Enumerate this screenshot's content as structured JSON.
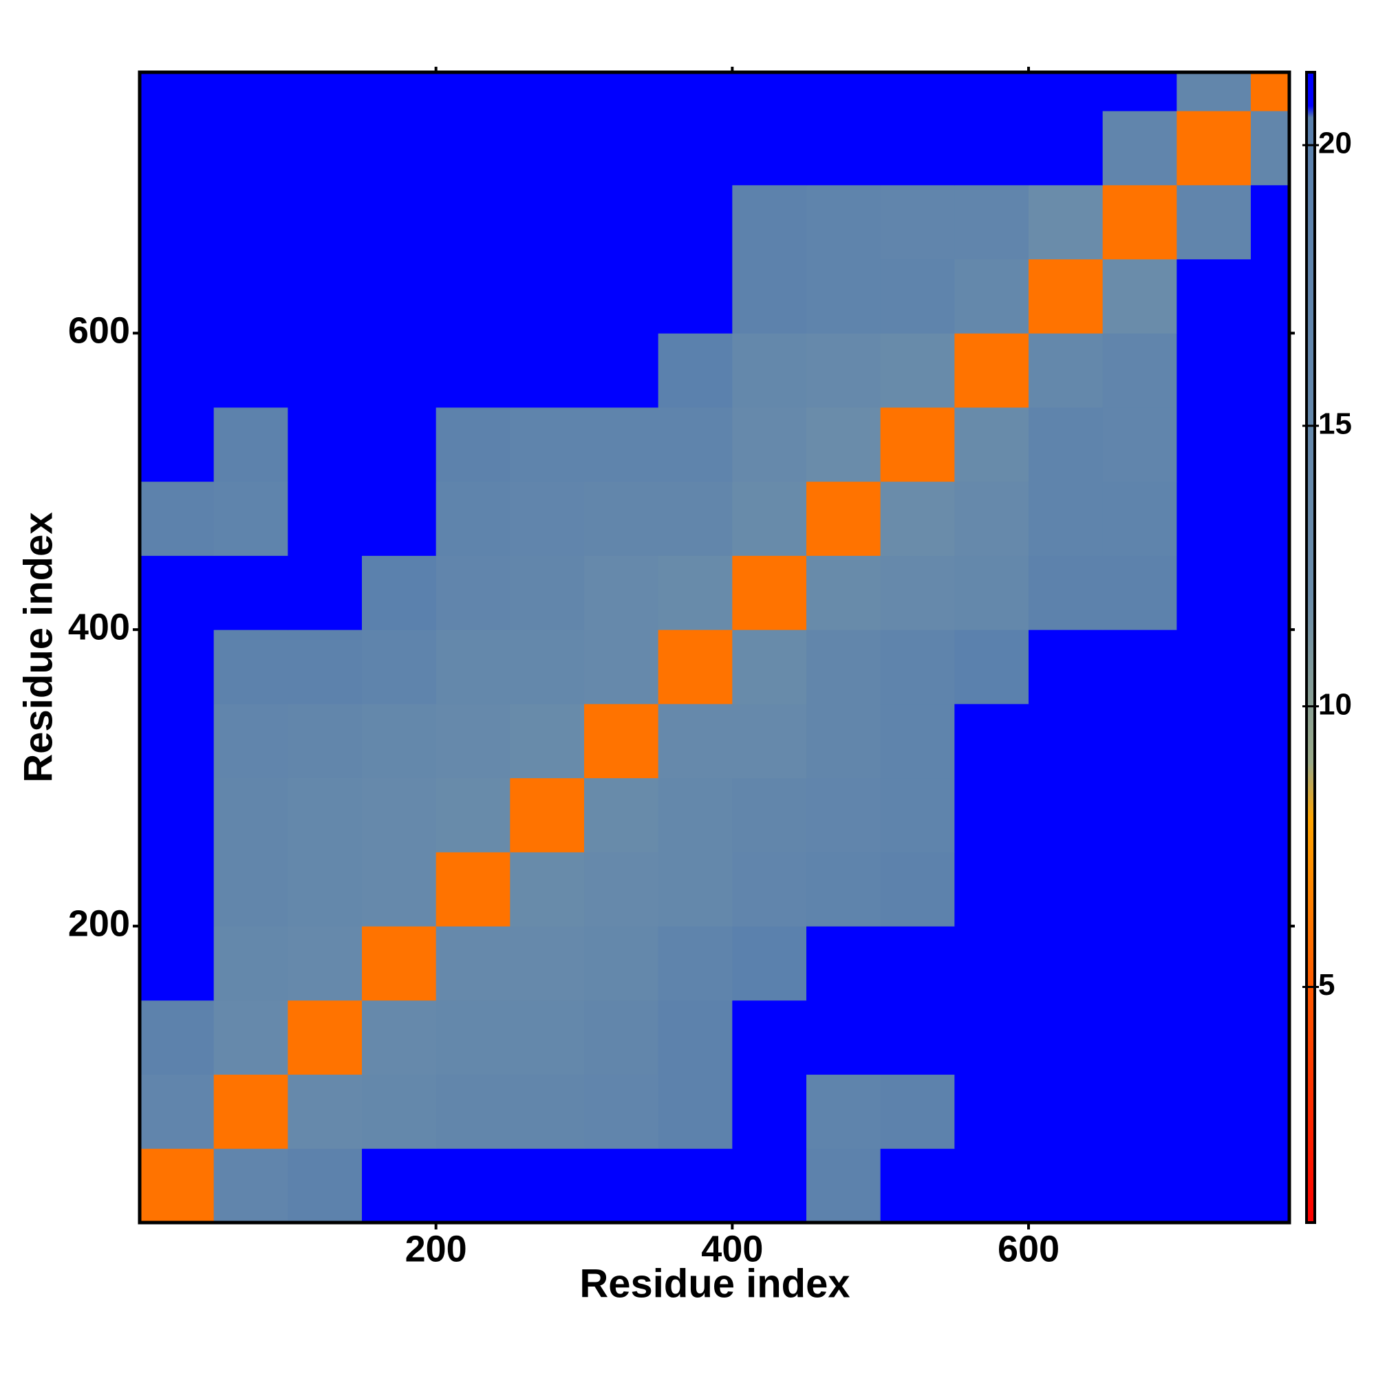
{
  "chart_data": {
    "type": "heatmap",
    "xlabel": "Residue index",
    "ylabel": "Residue index",
    "xlim": [
      0,
      776
    ],
    "ylim": [
      0,
      776
    ],
    "xticks": [
      200,
      400,
      600
    ],
    "yticks": [
      200,
      400,
      600
    ],
    "xbins": [
      0,
      50,
      100,
      150,
      200,
      250,
      300,
      350,
      400,
      450,
      500,
      550,
      600,
      650,
      700,
      750,
      776
    ],
    "ybins": [
      0,
      50,
      100,
      150,
      200,
      250,
      300,
      350,
      400,
      450,
      500,
      550,
      600,
      650,
      700,
      750,
      776
    ],
    "z": [
      [
        6,
        17,
        19,
        21,
        21,
        21,
        21,
        21,
        21,
        19,
        21,
        21,
        21,
        21,
        21,
        21
      ],
      [
        17,
        6,
        14,
        15,
        16,
        16,
        17,
        19,
        21,
        18,
        19,
        21,
        21,
        21,
        21,
        21
      ],
      [
        19,
        14,
        6,
        14,
        15,
        15,
        16,
        19,
        21,
        21,
        21,
        21,
        21,
        21,
        21,
        21
      ],
      [
        21,
        15,
        14,
        6,
        14,
        14,
        15,
        18,
        20,
        21,
        21,
        21,
        21,
        21,
        21,
        21
      ],
      [
        21,
        16,
        15,
        14,
        6,
        13,
        14,
        15,
        17,
        18,
        19,
        21,
        21,
        21,
        21,
        21
      ],
      [
        21,
        16,
        15,
        14,
        13,
        6,
        13,
        15,
        16,
        17,
        18,
        21,
        21,
        21,
        21,
        21
      ],
      [
        21,
        17,
        16,
        15,
        14,
        13,
        6,
        14,
        14,
        16,
        18,
        21,
        21,
        21,
        21,
        21
      ],
      [
        21,
        19,
        19,
        18,
        15,
        15,
        14,
        6,
        13,
        16,
        18,
        20,
        21,
        21,
        21,
        21
      ],
      [
        21,
        21,
        21,
        20,
        17,
        16,
        14,
        13,
        6,
        13,
        14,
        15,
        19,
        19,
        21,
        21
      ],
      [
        19,
        18,
        21,
        21,
        18,
        17,
        16,
        16,
        13,
        6,
        12,
        14,
        18,
        18,
        21,
        21
      ],
      [
        21,
        19,
        21,
        21,
        19,
        18,
        18,
        18,
        14,
        12,
        6,
        13,
        18,
        17,
        21,
        21
      ],
      [
        21,
        21,
        21,
        21,
        21,
        21,
        21,
        20,
        15,
        14,
        13,
        6,
        15,
        17,
        21,
        21
      ],
      [
        21,
        21,
        21,
        21,
        21,
        21,
        21,
        21,
        19,
        18,
        18,
        15,
        6,
        12,
        21,
        21
      ],
      [
        21,
        21,
        21,
        21,
        21,
        21,
        21,
        21,
        19,
        18,
        17,
        17,
        12,
        6,
        17,
        21
      ],
      [
        21,
        21,
        21,
        21,
        21,
        21,
        21,
        21,
        21,
        21,
        21,
        21,
        21,
        17,
        6,
        16
      ],
      [
        21,
        21,
        21,
        21,
        21,
        21,
        21,
        21,
        21,
        21,
        21,
        21,
        21,
        21,
        16,
        6
      ]
    ],
    "clim": [
      0.8,
      21.3
    ],
    "cticks": [
      5,
      10,
      15,
      20
    ],
    "colorscale": [
      [
        0.8,
        "#ff0000"
      ],
      [
        5,
        "#ff5a00"
      ],
      [
        8,
        "#ffa500"
      ],
      [
        9,
        "#9aaa88"
      ],
      [
        12,
        "#6a8caa"
      ],
      [
        20.5,
        "#5a80ad"
      ],
      [
        20.7,
        "#0000ff"
      ],
      [
        21.3,
        "#0000ff"
      ]
    ]
  }
}
